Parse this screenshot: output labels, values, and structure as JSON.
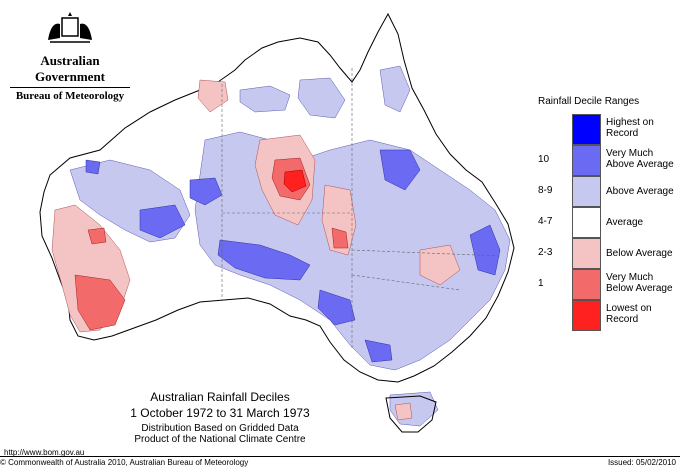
{
  "header": {
    "agency_line_1": "Australian Government",
    "agency_line_2": "Bureau of Meteorology"
  },
  "legend": {
    "title": "Rainfall Decile Ranges",
    "items": [
      {
        "code": "",
        "label_1": "Highest on",
        "label_2": "Record",
        "color": "#0000ff"
      },
      {
        "code": "10",
        "label_1": "Very Much",
        "label_2": "Above Average",
        "color": "#6a6af2"
      },
      {
        "code": "8-9",
        "label_1": "Above Average",
        "label_2": "",
        "color": "#c6c8f0"
      },
      {
        "code": "4-7",
        "label_1": "Average",
        "label_2": "",
        "color": "#ffffff"
      },
      {
        "code": "2-3",
        "label_1": "Below Average",
        "label_2": "",
        "color": "#f4c4c4"
      },
      {
        "code": "1",
        "label_1": "Very Much",
        "label_2": "Below Average",
        "color": "#f26a6a"
      },
      {
        "code": "",
        "label_1": "Lowest on",
        "label_2": "Record",
        "color": "#ff2020"
      }
    ]
  },
  "caption": {
    "title": "Australian Rainfall Deciles",
    "dates": "1 October 1972 to 31 March 1973",
    "line_1": "Distribution Based on Gridded Data",
    "line_2": "Product of the National Climate Centre"
  },
  "footer": {
    "url": "http://www.bom.gov.au",
    "copyright": "© Commonwealth of Australia 2010, Australian Bureau of Meteorology",
    "issued": "Issued: 05/02/2010"
  },
  "colors": {
    "highest": "#0000ff",
    "very_much_above": "#6a6af2",
    "above": "#c6c8f0",
    "average": "#ffffff",
    "below": "#f4c4c4",
    "very_much_below": "#f26a6a",
    "lowest": "#ff2020"
  }
}
